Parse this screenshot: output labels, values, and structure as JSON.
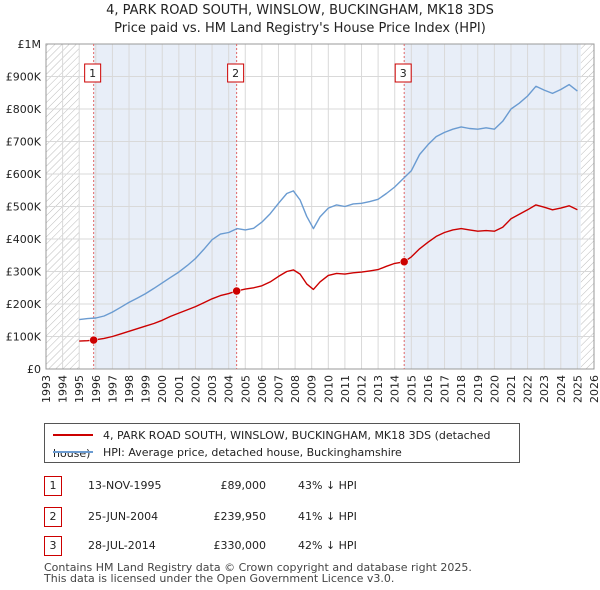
{
  "title_line1": "4, PARK ROAD SOUTH, WINSLOW, BUCKINGHAM, MK18 3DS",
  "title_line2": "Price paid vs. HM Land Registry's House Price Index (HPI)",
  "colors": {
    "property": "#cc0000",
    "hpi": "#6a9bd1",
    "shade": "#e8eef8",
    "hatch": "#bbbbbb",
    "grid": "#d9d9d9",
    "marker_border": "#cc0000",
    "vline": "#e06666"
  },
  "legend": {
    "property_label": "4, PARK ROAD SOUTH, WINSLOW, BUCKINGHAM, MK18 3DS (detached house)",
    "hpi_label": "HPI: Average price, detached house, Buckinghamshire"
  },
  "transactions": [
    {
      "num": "1",
      "date": "13-NOV-1995",
      "price": "£89,000",
      "hpi_diff": "43% ↓ HPI",
      "year": 1995.87,
      "value": 89000
    },
    {
      "num": "2",
      "date": "25-JUN-2004",
      "price": "£239,950",
      "hpi_diff": "41% ↓ HPI",
      "year": 2004.48,
      "value": 239950
    },
    {
      "num": "3",
      "date": "28-JUL-2014",
      "price": "£330,000",
      "hpi_diff": "42% ↓ HPI",
      "year": 2014.57,
      "value": 330000
    }
  ],
  "footer": {
    "line1": "Contains HM Land Registry data © Crown copyright and database right 2025.",
    "line2": "This data is licensed under the Open Government Licence v3.0."
  },
  "chart_data": {
    "type": "line",
    "xlim": [
      1993,
      2026
    ],
    "ylim": [
      0,
      1000000
    ],
    "x_ticks": [
      "1993",
      "1994",
      "1995",
      "1996",
      "1997",
      "1998",
      "1999",
      "2000",
      "2001",
      "2002",
      "2003",
      "2004",
      "2005",
      "2006",
      "2007",
      "2008",
      "2009",
      "2010",
      "2011",
      "2012",
      "2013",
      "2014",
      "2015",
      "2016",
      "2017",
      "2018",
      "2019",
      "2020",
      "2021",
      "2022",
      "2023",
      "2024",
      "2025",
      "2026"
    ],
    "y_ticks": [
      {
        "value": 0,
        "label": "£0"
      },
      {
        "value": 100000,
        "label": "£100K"
      },
      {
        "value": 200000,
        "label": "£200K"
      },
      {
        "value": 300000,
        "label": "£300K"
      },
      {
        "value": 400000,
        "label": "£400K"
      },
      {
        "value": 500000,
        "label": "£500K"
      },
      {
        "value": 600000,
        "label": "£600K"
      },
      {
        "value": 700000,
        "label": "£700K"
      },
      {
        "value": 800000,
        "label": "£800K"
      },
      {
        "value": 900000,
        "label": "£900K"
      },
      {
        "value": 1000000,
        "label": "£1M"
      }
    ],
    "shaded_before": 1995,
    "shaded_after": 2025.2,
    "series": [
      {
        "name": "HPI: Average price, detached house, Buckinghamshire",
        "color": "#6a9bd1",
        "x": [
          1995.0,
          1995.5,
          1996.0,
          1996.5,
          1997.0,
          1997.5,
          1998.0,
          1998.5,
          1999.0,
          1999.5,
          2000.0,
          2000.5,
          2001.0,
          2001.5,
          2002.0,
          2002.5,
          2003.0,
          2003.5,
          2004.0,
          2004.5,
          2005.0,
          2005.5,
          2006.0,
          2006.5,
          2007.0,
          2007.5,
          2007.9,
          2008.3,
          2008.7,
          2009.1,
          2009.5,
          2010.0,
          2010.5,
          2011.0,
          2011.5,
          2012.0,
          2012.5,
          2013.0,
          2013.5,
          2014.0,
          2014.5,
          2015.0,
          2015.5,
          2016.0,
          2016.5,
          2017.0,
          2017.5,
          2018.0,
          2018.5,
          2019.0,
          2019.5,
          2020.0,
          2020.5,
          2021.0,
          2021.5,
          2022.0,
          2022.5,
          2023.0,
          2023.5,
          2024.0,
          2024.5,
          2025.0
        ],
        "values": [
          152000,
          155000,
          157000,
          163000,
          175000,
          190000,
          205000,
          218000,
          232000,
          248000,
          265000,
          282000,
          298000,
          318000,
          340000,
          368000,
          398000,
          415000,
          420000,
          432000,
          428000,
          433000,
          452000,
          478000,
          510000,
          540000,
          548000,
          520000,
          470000,
          432000,
          468000,
          495000,
          505000,
          500000,
          508000,
          510000,
          515000,
          522000,
          540000,
          560000,
          585000,
          610000,
          660000,
          690000,
          715000,
          728000,
          738000,
          745000,
          740000,
          738000,
          742000,
          738000,
          762000,
          800000,
          818000,
          840000,
          870000,
          858000,
          848000,
          860000,
          875000,
          855000
        ]
      },
      {
        "name": "4, PARK ROAD SOUTH, WINSLOW, BUCKINGHAM, MK18 3DS (detached house)",
        "color": "#cc0000",
        "x": [
          1995.0,
          1995.5,
          1995.87,
          1996.5,
          1997.0,
          1997.5,
          1998.0,
          1998.5,
          1999.0,
          1999.5,
          2000.0,
          2000.5,
          2001.0,
          2001.5,
          2002.0,
          2002.5,
          2003.0,
          2003.5,
          2004.0,
          2004.48,
          2005.0,
          2005.5,
          2006.0,
          2006.5,
          2007.0,
          2007.5,
          2007.9,
          2008.3,
          2008.7,
          2009.1,
          2009.5,
          2010.0,
          2010.5,
          2011.0,
          2011.5,
          2012.0,
          2012.5,
          2013.0,
          2013.5,
          2014.0,
          2014.57,
          2015.0,
          2015.5,
          2016.0,
          2016.5,
          2017.0,
          2017.5,
          2018.0,
          2018.5,
          2019.0,
          2019.5,
          2020.0,
          2020.5,
          2021.0,
          2021.5,
          2022.0,
          2022.5,
          2023.0,
          2023.5,
          2024.0,
          2024.5,
          2025.0
        ],
        "values": [
          86000,
          87000,
          89000,
          94000,
          100000,
          108000,
          116000,
          124000,
          132000,
          140000,
          150000,
          162000,
          172000,
          182000,
          192000,
          204000,
          216000,
          226000,
          232000,
          239950,
          246000,
          250000,
          256000,
          268000,
          285000,
          300000,
          305000,
          292000,
          262000,
          245000,
          268000,
          288000,
          294000,
          292000,
          296000,
          298000,
          302000,
          306000,
          316000,
          325000,
          330000,
          345000,
          370000,
          390000,
          408000,
          420000,
          428000,
          432000,
          428000,
          424000,
          426000,
          424000,
          436000,
          462000,
          476000,
          490000,
          505000,
          498000,
          490000,
          495000,
          502000,
          490000
        ]
      }
    ]
  }
}
